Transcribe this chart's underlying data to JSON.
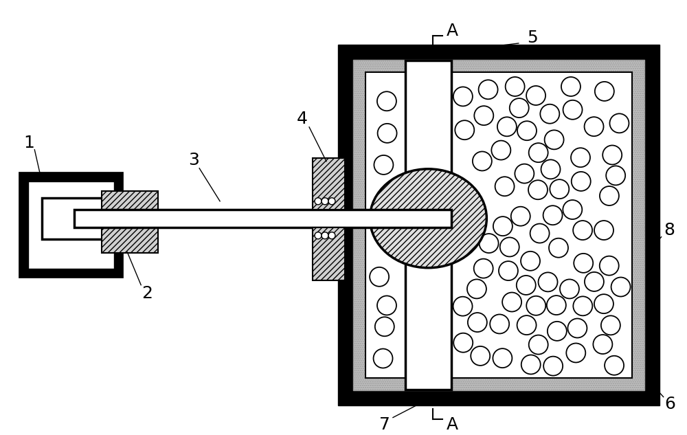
{
  "bg_color": "#ffffff",
  "fig_width": 10.0,
  "fig_height": 6.33,
  "black": "#000000",
  "white": "#ffffff",
  "gray_hatch": "#cccccc",
  "particle_color": "#ffffff",
  "speckle_color": "#c8c8c8"
}
